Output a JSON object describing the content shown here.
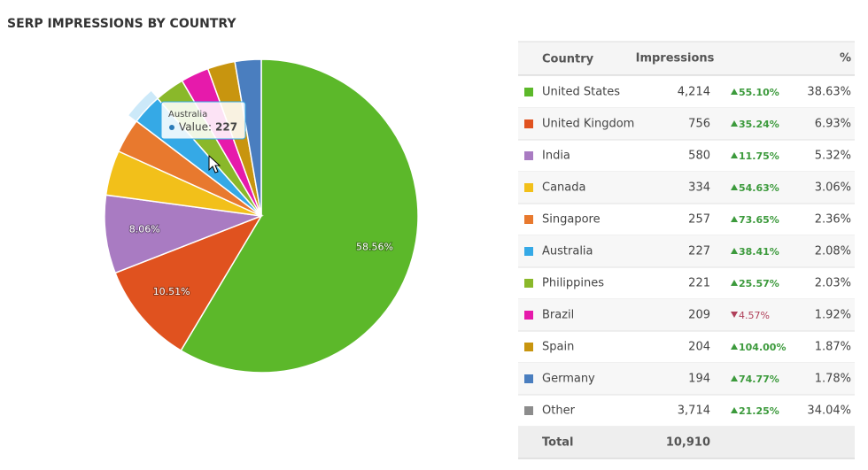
{
  "header": {
    "title": "SERP IMPRESSIONS BY COUNTRY"
  },
  "chart_data": {
    "type": "pie",
    "categories": [
      "United States",
      "United Kingdom",
      "India",
      "Canada",
      "Singapore",
      "Australia",
      "Philippines",
      "Brazil",
      "Spain",
      "Germany"
    ],
    "values": [
      58.56,
      10.51,
      8.06,
      4.64,
      3.57,
      3.15,
      3.07,
      2.9,
      2.83,
      2.7
    ],
    "value_labels": [
      "58.56%",
      "10.51%",
      "8.06%",
      null,
      null,
      null,
      null,
      null,
      null,
      null
    ],
    "colors": [
      "#5cb82a",
      "#e0521f",
      "#a97bc2",
      "#f2c01a",
      "#e8792e",
      "#35a9e6",
      "#8ab82a",
      "#e61aab",
      "#c8950f",
      "#4a7ebf"
    ],
    "highlight": 5
  },
  "tooltip": {
    "title": "Australia",
    "label": "Value:",
    "value": "227"
  },
  "table": {
    "headers": [
      "Country",
      "Impressions",
      "%"
    ],
    "rows": [
      {
        "impressions": "4,214",
        "change": "55.10%",
        "trend": "up",
        "pct": "38.63%"
      },
      {
        "impressions": "756",
        "change": "35.24%",
        "trend": "up",
        "pct": "6.93%"
      },
      {
        "impressions": "580",
        "change": "11.75%",
        "trend": "up",
        "pct": "5.32%"
      },
      {
        "impressions": "334",
        "change": "54.63%",
        "trend": "up",
        "pct": "3.06%"
      },
      {
        "impressions": "257",
        "change": "73.65%",
        "trend": "up",
        "pct": "2.36%"
      },
      {
        "impressions": "227",
        "change": "38.41%",
        "trend": "up",
        "pct": "2.08%"
      },
      {
        "impressions": "221",
        "change": "25.57%",
        "trend": "up",
        "pct": "2.03%"
      },
      {
        "impressions": "209",
        "change": "4.57%",
        "trend": "down",
        "pct": "1.92%"
      },
      {
        "impressions": "204",
        "change": "104.00%",
        "trend": "up",
        "pct": "1.87%"
      },
      {
        "impressions": "194",
        "change": "74.77%",
        "trend": "up",
        "pct": "1.78%"
      },
      {
        "country": "Other",
        "color": "#8c8c8c",
        "impressions": "3,714",
        "change": "21.25%",
        "trend": "up",
        "pct": "34.04%"
      }
    ],
    "total": {
      "label": "Total",
      "impressions": "10,910"
    }
  }
}
